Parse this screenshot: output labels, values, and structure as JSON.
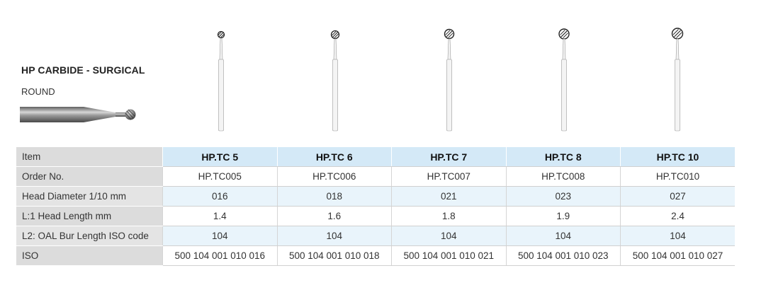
{
  "header": {
    "title": "HP CARBIDE - SURGICAL",
    "subtitle": "ROUND"
  },
  "table": {
    "header_label": "Item",
    "columns": [
      "HP.TC 5",
      "HP.TC 6",
      "HP.TC 7",
      "HP.TC 8",
      "HP.TC 10"
    ],
    "rows": [
      {
        "label": "Order No.",
        "values": [
          "HP.TC005",
          "HP.TC006",
          "HP.TC007",
          "HP.TC008",
          "HP.TC010"
        ]
      },
      {
        "label": "Head Diameter 1/10 mm",
        "values": [
          "016",
          "018",
          "021",
          "023",
          "027"
        ]
      },
      {
        "label": "L:1 Head Length mm",
        "values": [
          "1.4",
          "1.6",
          "1.8",
          "1.9",
          "2.4"
        ]
      },
      {
        "label": "L2: OAL Bur Length ISO code",
        "values": [
          "104",
          "104",
          "104",
          "104",
          "104"
        ]
      },
      {
        "label": "ISO",
        "values": [
          "500 104 001 010 016",
          "500 104 001 010 018",
          "500 104 001 010 021",
          "500 104 001 010 023",
          "500 104 001 010 027"
        ]
      }
    ]
  }
}
